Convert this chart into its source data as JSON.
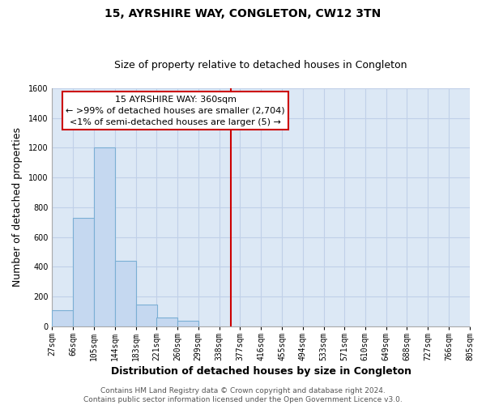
{
  "title": "15, AYRSHIRE WAY, CONGLETON, CW12 3TN",
  "subtitle": "Size of property relative to detached houses in Congleton",
  "xlabel": "Distribution of detached houses by size in Congleton",
  "ylabel": "Number of detached properties",
  "bar_left_edges": [
    27,
    66,
    105,
    144,
    183,
    221,
    260,
    299,
    338
  ],
  "bar_heights": [
    110,
    730,
    1200,
    440,
    145,
    60,
    35,
    0,
    0
  ],
  "bin_width": 39,
  "bar_color": "#c5d8f0",
  "bar_edgecolor": "#7bafd4",
  "vline_x": 360,
  "vline_color": "#cc0000",
  "all_bin_edges": [
    27,
    66,
    105,
    144,
    183,
    221,
    260,
    299,
    338,
    377,
    416,
    455,
    494,
    533,
    571,
    610,
    649,
    688,
    727,
    766,
    805
  ],
  "xtick_labels": [
    "27sqm",
    "66sqm",
    "105sqm",
    "144sqm",
    "183sqm",
    "221sqm",
    "260sqm",
    "299sqm",
    "338sqm",
    "377sqm",
    "416sqm",
    "455sqm",
    "494sqm",
    "533sqm",
    "571sqm",
    "610sqm",
    "649sqm",
    "688sqm",
    "727sqm",
    "766sqm",
    "805sqm"
  ],
  "ylim": [
    0,
    1600
  ],
  "yticks": [
    0,
    200,
    400,
    600,
    800,
    1000,
    1200,
    1400,
    1600
  ],
  "annotation_line1": "15 AYRSHIRE WAY: 360sqm",
  "annotation_line2": "← >99% of detached houses are smaller (2,704)",
  "annotation_line3": "<1% of semi-detached houses are larger (5) →",
  "annotation_box_color": "#ffffff",
  "annotation_box_edgecolor": "#cc0000",
  "footer_line1": "Contains HM Land Registry data © Crown copyright and database right 2024.",
  "footer_line2": "Contains public sector information licensed under the Open Government Licence v3.0.",
  "plot_bg_color": "#dce8f5",
  "fig_bg_color": "#ffffff",
  "grid_color": "#c0d0e8",
  "title_fontsize": 10,
  "subtitle_fontsize": 9,
  "axis_label_fontsize": 9,
  "tick_fontsize": 7,
  "footer_fontsize": 6.5,
  "annotation_fontsize": 8
}
